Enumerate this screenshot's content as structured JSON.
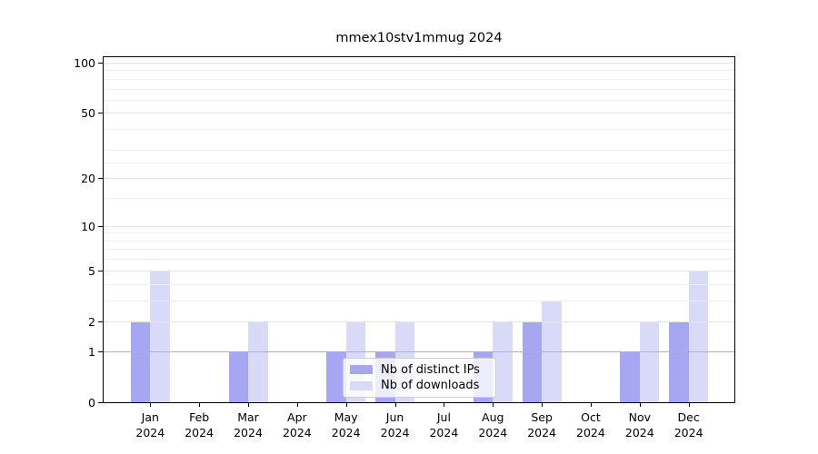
{
  "chart_data": {
    "type": "bar",
    "title": "mmex10stv1mmug 2024",
    "categories": [
      "Jan",
      "Feb",
      "Mar",
      "Apr",
      "May",
      "Jun",
      "Jul",
      "Aug",
      "Sep",
      "Oct",
      "Nov",
      "Dec"
    ],
    "year_suffix": "2024",
    "series": [
      {
        "name": "Nb of distinct IPs",
        "color": "#a6a6f2",
        "values": [
          2,
          0,
          1,
          0,
          1,
          1,
          0,
          1,
          2,
          0,
          1,
          2
        ]
      },
      {
        "name": "Nb of downloads",
        "color": "#d9d9f8",
        "values": [
          5,
          0,
          2,
          0,
          2,
          2,
          0,
          2,
          3,
          0,
          2,
          5
        ]
      }
    ],
    "y_ticks": [
      0,
      1,
      2,
      5,
      10,
      20,
      50,
      100
    ],
    "y_tick_labels": [
      "0",
      "1",
      "2",
      "5",
      "10",
      "20",
      "50",
      "100"
    ],
    "y_minor_ticks": [
      3,
      4,
      6,
      7,
      8,
      9,
      15,
      25,
      30,
      40,
      60,
      70,
      80,
      90
    ],
    "y_scale": "log10(value+1)",
    "ylim": [
      0,
      110
    ],
    "grid": true,
    "legend_position": "inside-lower-center"
  },
  "colors": {
    "grid_major": "#e4e4e4",
    "grid_minor": "#f0f0f0",
    "grid_unit_line": "#b3b3b3",
    "axis": "#000000",
    "background": "#ffffff"
  }
}
